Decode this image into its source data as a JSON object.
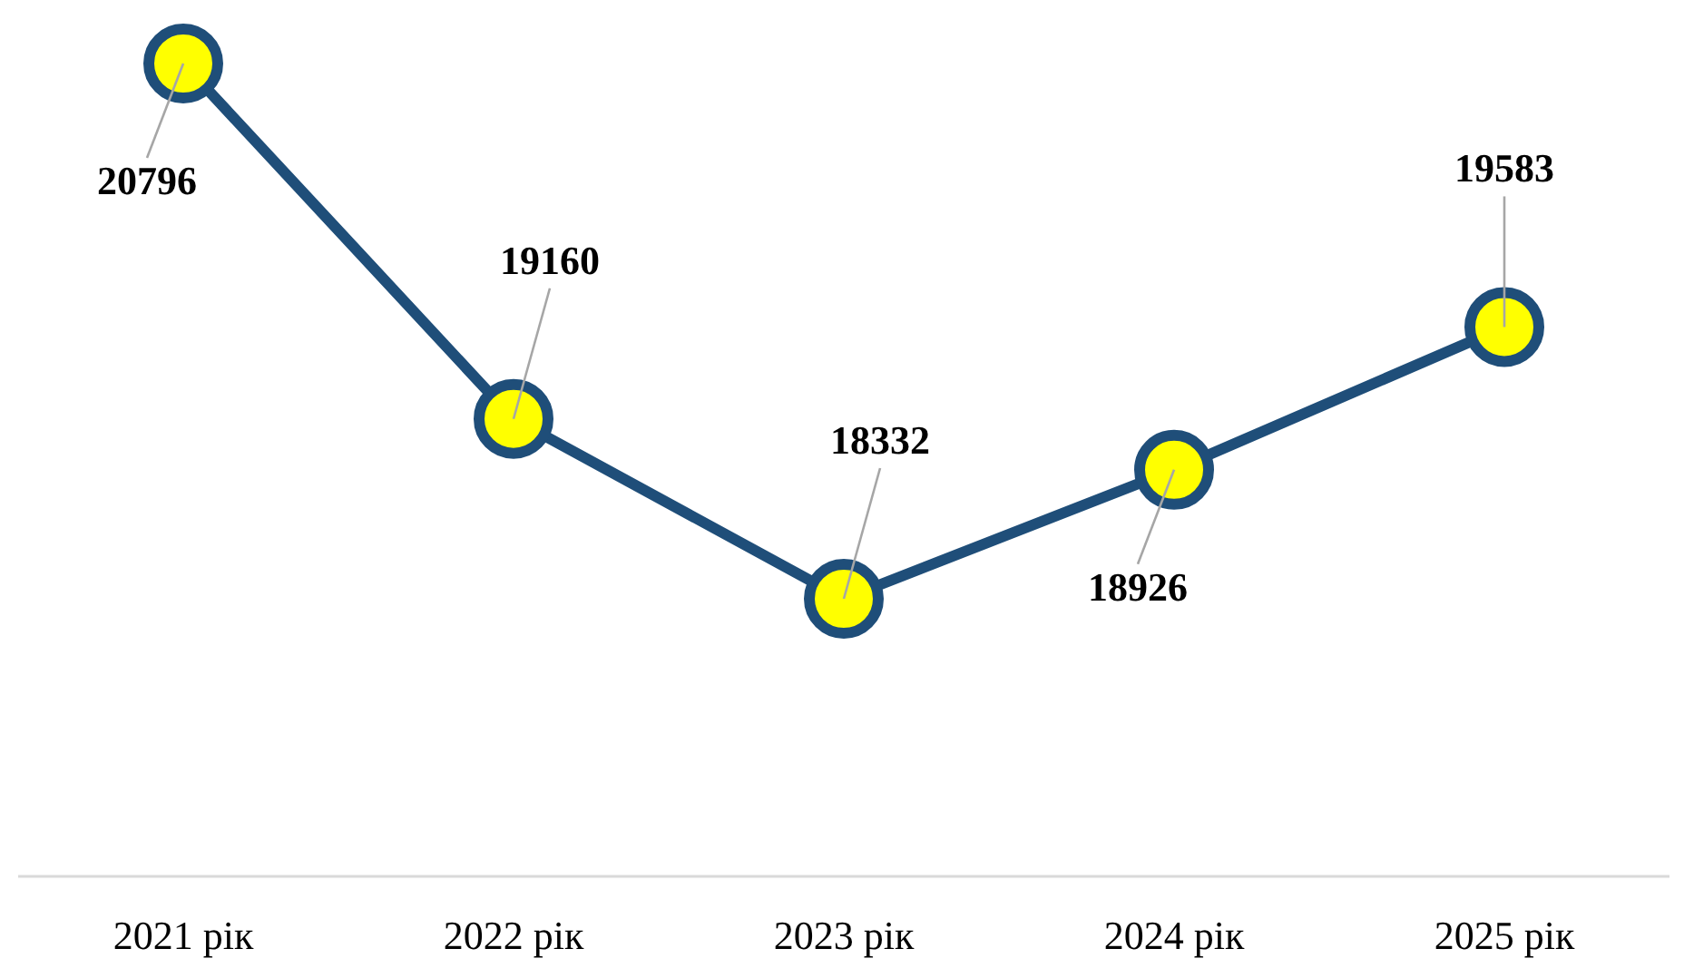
{
  "chart_data": {
    "type": "line",
    "categories": [
      "2021 рік",
      "2022 рік",
      "2023 рік",
      "2024 рік",
      "2025 рік"
    ],
    "series": [
      {
        "color": "#1f4e79",
        "values": [
          20796,
          19160,
          18332,
          18926,
          19583
        ]
      }
    ],
    "data_labels": true,
    "marker": "circle",
    "line_style": "solid"
  }
}
